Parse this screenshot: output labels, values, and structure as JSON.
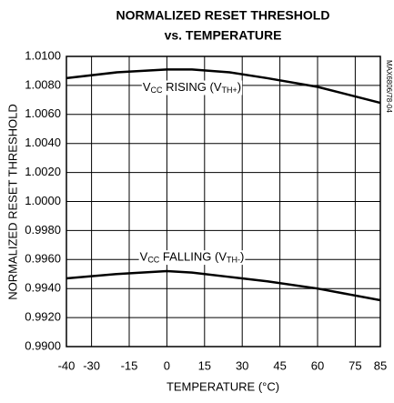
{
  "chart_data": {
    "type": "line",
    "title": [
      "NORMALIZED RESET THRESHOLD",
      "vs. TEMPERATURE"
    ],
    "x_label": "TEMPERATURE (°C)",
    "y_label": "NORMALIZED RESET THRESHOLD",
    "side_note": "MAX6806/78-04",
    "xlim": [
      -40,
      85
    ],
    "xticks": [
      -40,
      -30,
      -15,
      0,
      15,
      30,
      45,
      60,
      75,
      85
    ],
    "ylim": [
      0.99,
      1.01
    ],
    "yticks": [
      {
        "value": 0.99,
        "label": "0.9900"
      },
      {
        "value": 0.992,
        "label": "0.9920"
      },
      {
        "value": 0.994,
        "label": "0.9940"
      },
      {
        "value": 0.996,
        "label": "0.9960"
      },
      {
        "value": 0.998,
        "label": "0.9980"
      },
      {
        "value": 1.0,
        "label": "1.0000"
      },
      {
        "value": 1.002,
        "label": "1.0020"
      },
      {
        "value": 1.004,
        "label": "1.0040"
      },
      {
        "value": 1.006,
        "label": "1.0060"
      },
      {
        "value": 1.008,
        "label": "1.0080"
      },
      {
        "value": 1.01,
        "label": "1.0100"
      }
    ],
    "grid": true,
    "x": [
      -40,
      -20,
      0,
      10,
      25,
      40,
      60,
      85
    ],
    "series": [
      {
        "color": "#000000",
        "values": [
          1.0085,
          1.0089,
          1.0091,
          1.0091,
          1.0089,
          1.0085,
          1.0079,
          1.0068
        ]
      },
      {
        "color": "#000000",
        "values": [
          0.9947,
          0.995,
          0.9952,
          0.9951,
          0.9948,
          0.9945,
          0.994,
          0.9932
        ]
      }
    ],
    "annotations": [
      {
        "parts": [
          "V",
          "CC",
          " RISING (V",
          "TH+",
          ")"
        ],
        "x": 10,
        "y": 1.0078
      },
      {
        "parts": [
          "V",
          "CC",
          " FALLING (V",
          "TH-",
          ")"
        ],
        "x": 10,
        "y": 0.9961
      }
    ]
  }
}
